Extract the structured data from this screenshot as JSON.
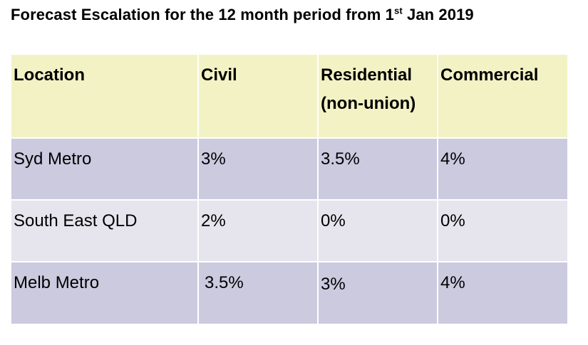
{
  "title": {
    "prefix": "Forecast Escalation for the 12 month period from 1",
    "superscript": "st",
    "suffix": " Jan 2019"
  },
  "table": {
    "headers": [
      "Location",
      "Civil",
      "Residential (non-union)",
      "Commercial"
    ],
    "header_lines": {
      "residential_1": "Residential",
      "residential_2": "(non-union)"
    },
    "rows": [
      [
        "Syd Metro",
        "3%",
        "3.5%",
        "4%"
      ],
      [
        "South East QLD",
        "2%",
        "0%",
        "0%"
      ],
      [
        "Melb Metro",
        "3.5%",
        "3%",
        "4%"
      ]
    ]
  },
  "colors": {
    "header_bg": "#f2f2c5",
    "row_dark_bg": "#cbcadf",
    "row_light_bg": "#e6e5ee"
  }
}
